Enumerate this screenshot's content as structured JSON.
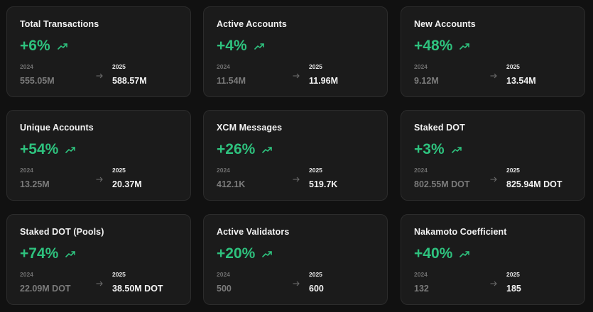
{
  "cards": [
    {
      "title": "Total Transactions",
      "change": "+6%",
      "from_year": "2024",
      "from_value": "555.05M",
      "to_year": "2025",
      "to_value": "588.57M"
    },
    {
      "title": "Active Accounts",
      "change": "+4%",
      "from_year": "2024",
      "from_value": "11.54M",
      "to_year": "2025",
      "to_value": "11.96M"
    },
    {
      "title": "New Accounts",
      "change": "+48%",
      "from_year": "2024",
      "from_value": "9.12M",
      "to_year": "2025",
      "to_value": "13.54M"
    },
    {
      "title": "Unique Accounts",
      "change": "+54%",
      "from_year": "2024",
      "from_value": "13.25M",
      "to_year": "2025",
      "to_value": "20.37M"
    },
    {
      "title": "XCM Messages",
      "change": "+26%",
      "from_year": "2024",
      "from_value": "412.1K",
      "to_year": "2025",
      "to_value": "519.7K"
    },
    {
      "title": "Staked DOT",
      "change": "+3%",
      "from_year": "2024",
      "from_value": "802.55M DOT",
      "to_year": "2025",
      "to_value": "825.94M DOT"
    },
    {
      "title": "Staked DOT (Pools)",
      "change": "+74%",
      "from_year": "2024",
      "from_value": "22.09M DOT",
      "to_year": "2025",
      "to_value": "38.50M DOT"
    },
    {
      "title": "Active Validators",
      "change": "+20%",
      "from_year": "2024",
      "from_value": "500",
      "to_year": "2025",
      "to_value": "600"
    },
    {
      "title": "Nakamoto Coefficient",
      "change": "+40%",
      "from_year": "2024",
      "from_value": "132",
      "to_year": "2025",
      "to_value": "185"
    }
  ],
  "icons": {
    "trend": "trending-up-icon",
    "arrow": "arrow-right-icon"
  },
  "colors": {
    "background": "#111111",
    "card": "#1b1b1b",
    "accent_green": "#2ec27e",
    "muted_text": "#7b7b7b"
  }
}
